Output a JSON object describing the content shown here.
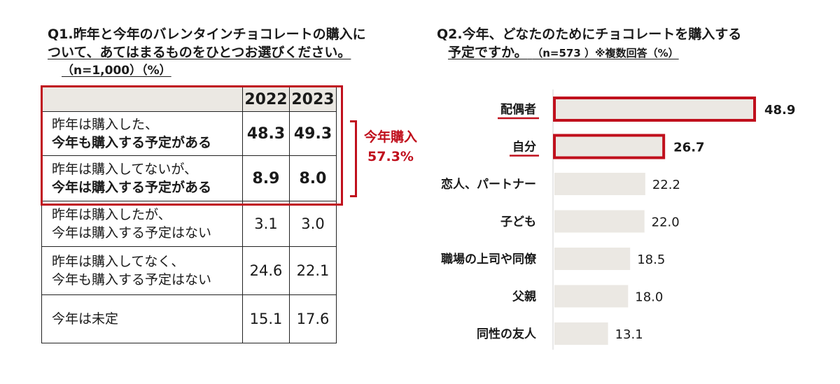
{
  "q1": {
    "title_line1": "Q1.昨年と今年のバレンタインチョコレートの購入に",
    "title_line2": "ついて、あてはまるものをひとつお選びください。",
    "title_line3": "（n=1,000）（%）",
    "headers": [
      "2022",
      "2023"
    ],
    "rows": [
      {
        "line1": "昨年は購入した、",
        "line2": "今年も購入する予定がある",
        "v2022": "48.3",
        "v2023": "49.3"
      },
      {
        "line1": "昨年は購入してないが、",
        "line2": "今年は購入する予定がある",
        "v2022": "8.9",
        "v2023": "8.0"
      },
      {
        "line1": "昨年は購入したが、",
        "line2": "今年は購入する予定はない",
        "v2022": "3.1",
        "v2023": "3.0"
      },
      {
        "line1": "昨年は購入してなく、",
        "line2": "今年も購入する予定はない",
        "v2022": "24.6",
        "v2023": "22.1"
      },
      {
        "line1": "今年は未定",
        "line2": "",
        "v2022": "15.1",
        "v2023": "17.6"
      }
    ],
    "bracket_label_line1": "今年購入",
    "bracket_label_line2": "57.3%",
    "highlight_color": "#c0101d"
  },
  "q2": {
    "title_line1": "Q2.今年、どなたのためにチョコレートを購入する",
    "title_line2": "予定ですか。",
    "title_sub": "（n=573 ）※複数回答（%）"
  },
  "chart_data": {
    "type": "bar",
    "orientation": "horizontal",
    "categories": [
      "配偶者",
      "自分",
      "恋人、パートナー",
      "子ども",
      "職場の上司や同僚",
      "父親",
      "同性の友人"
    ],
    "values": [
      48.9,
      26.7,
      22.2,
      22.0,
      18.5,
      18.0,
      13.1
    ],
    "value_labels": [
      "48.9",
      "26.7",
      "22.2",
      "22.0",
      "18.5",
      "18.0",
      "13.1"
    ],
    "highlighted": [
      true,
      true,
      false,
      false,
      false,
      false,
      false
    ],
    "bar_color": "#ebe8e3",
    "highlight_color": "#c0101d",
    "xlim": [
      0,
      50
    ]
  }
}
